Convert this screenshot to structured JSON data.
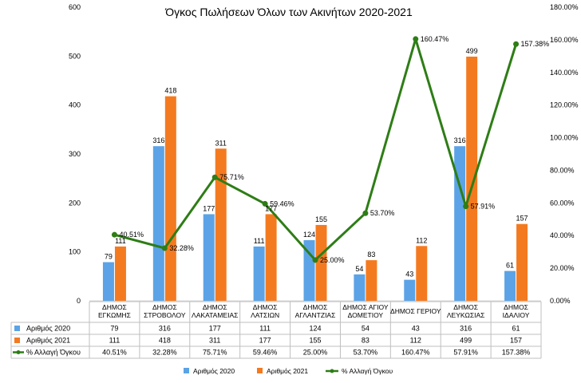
{
  "chart_data": {
    "type": "bar",
    "title": "Όγκος Πωλήσεων Όλων των Ακινήτων 2020-2021",
    "categories": [
      [
        "ΔΗΜΟΣ",
        "ΕΓΚΩΜΗΣ"
      ],
      [
        "ΔΗΜΟΣ",
        "ΣΤΡΟΒΟΛΟΥ"
      ],
      [
        "ΔΗΜΟΣ",
        "ΛΑΚΑΤΑΜΕΙΑΣ"
      ],
      [
        "ΔΗΜΟΣ",
        "ΛΑΤΣΙΩΝ"
      ],
      [
        "ΔΗΜΟΣ",
        "ΑΓΛΑΝΤΖΙΑΣ"
      ],
      [
        "ΔΗΜΟΣ ΑΓΙΟΥ",
        "ΔΟΜΕΤΙΟΥ"
      ],
      [
        "ΔΗΜΟΣ ΓΕΡΙΟΥ"
      ],
      [
        "ΔΗΜΟΣ",
        "ΛΕΥΚΩΣΙΑΣ"
      ],
      [
        "ΔΗΜΟΣ",
        "ΙΔΑΛΙΟΥ"
      ]
    ],
    "series": [
      {
        "name": "Αριθμός 2020",
        "type": "bar",
        "axis": "left",
        "color": "#5BA3E6",
        "values": [
          79,
          316,
          177,
          111,
          124,
          54,
          43,
          316,
          61
        ]
      },
      {
        "name": "Αριθμός 2021",
        "type": "bar",
        "axis": "left",
        "color": "#F47A20",
        "values": [
          111,
          418,
          311,
          177,
          155,
          83,
          112,
          499,
          157
        ]
      },
      {
        "name": "% Αλλαγή Όγκου",
        "type": "line",
        "axis": "right",
        "color": "#2E7D16",
        "values": [
          40.51,
          32.28,
          75.71,
          59.46,
          25.0,
          53.7,
          160.47,
          57.91,
          157.38
        ],
        "labels": [
          "40.51%",
          "32.28%",
          "75.71%",
          "59.46%",
          "25.00%",
          "53.70%",
          "160.47%",
          "57.91%",
          "157.38%"
        ]
      }
    ],
    "y_left": {
      "min": 0,
      "max": 600,
      "ticks": [
        "0",
        "100",
        "200",
        "300",
        "400",
        "500",
        "600"
      ]
    },
    "y_right": {
      "min": 0,
      "max": 180,
      "ticks": [
        "0.00%",
        "20.00%",
        "40.00%",
        "60.00%",
        "80.00%",
        "100.00%",
        "120.00%",
        "140.00%",
        "160.00%",
        "180.00%"
      ]
    },
    "grid": false,
    "legend_position": "bottom",
    "data_table": true
  }
}
